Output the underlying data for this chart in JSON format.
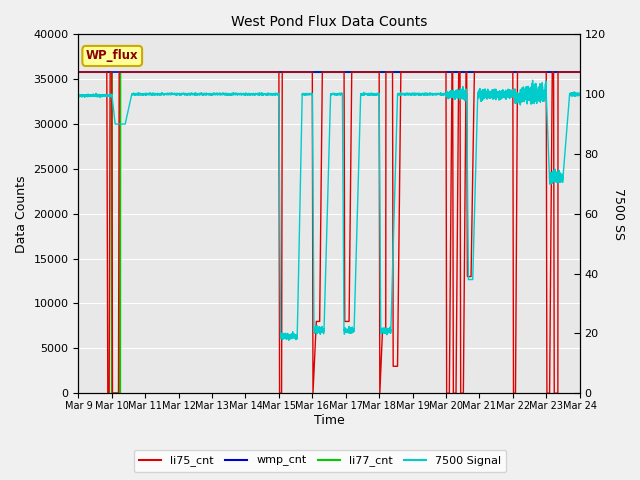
{
  "title": "West Pond Flux Data Counts",
  "xlabel": "Time",
  "ylabel_left": "Data Counts",
  "ylabel_right": "7500 SS",
  "ylim_left": [
    0,
    40000
  ],
  "ylim_right": [
    0,
    120
  ],
  "bg_color": "#f0f0f0",
  "plot_bg_color": "#e8e8e8",
  "legend_label": "WP_flux",
  "legend_bg": "#ffff99",
  "legend_border": "#ccaa00",
  "colors": {
    "li75_cnt": "#dd0000",
    "wmp_cnt": "#0000cc",
    "li77_cnt": "#00cc00",
    "7500": "#00cccc"
  },
  "xtick_labels": [
    "Mar 9",
    "Mar 10",
    "Mar 11",
    "Mar 12",
    "Mar 13",
    "Mar 14",
    "Mar 15",
    "Mar 16",
    "Mar 17",
    "Mar 18",
    "Mar 19",
    "Mar 20",
    "Mar 21",
    "Mar 22",
    "Mar 23",
    "Mar 24"
  ],
  "steady_val": 35800,
  "steady_7500": 100
}
